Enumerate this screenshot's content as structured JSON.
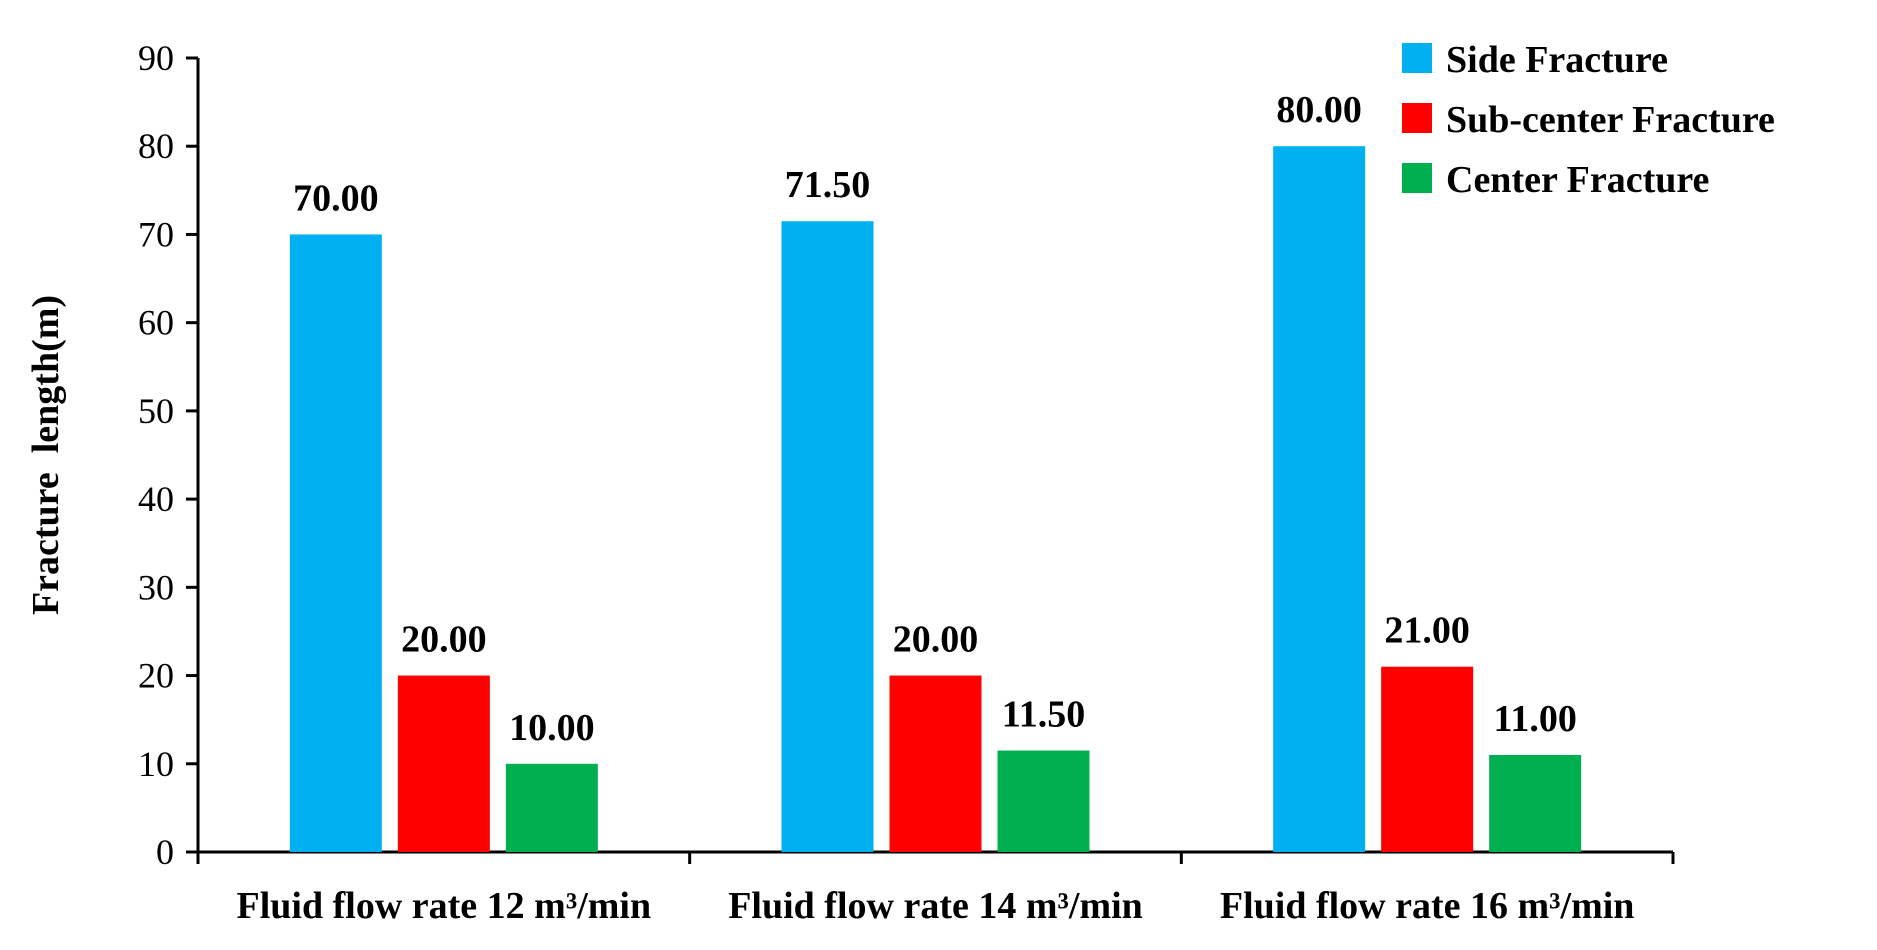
{
  "chart_data": {
    "type": "bar",
    "title": "",
    "xlabel": "",
    "ylabel": "Fracture  length(m)",
    "ylim": [
      0,
      90
    ],
    "yticks": [
      0,
      10,
      20,
      30,
      40,
      50,
      60,
      70,
      80,
      90
    ],
    "categories": [
      "Fluid flow rate 12 m³/min",
      "Fluid flow rate 14 m³/min",
      "Fluid flow rate 16 m³/min"
    ],
    "series": [
      {
        "name": "Side Fracture",
        "color": "#00B0F0",
        "values": [
          70.0,
          71.5,
          80.0
        ],
        "labels": [
          "70.00",
          "71.50",
          "80.00"
        ]
      },
      {
        "name": "Sub-center Fracture",
        "color": "#FF0000",
        "values": [
          20.0,
          20.0,
          21.0
        ],
        "labels": [
          "20.00",
          "20.00",
          "21.00"
        ]
      },
      {
        "name": "Center Fracture",
        "color": "#00B050",
        "values": [
          10.0,
          11.5,
          11.0
        ],
        "labels": [
          "10.00",
          "11.50",
          "11.00"
        ]
      }
    ],
    "legend_position": "top-right",
    "grid": false
  }
}
